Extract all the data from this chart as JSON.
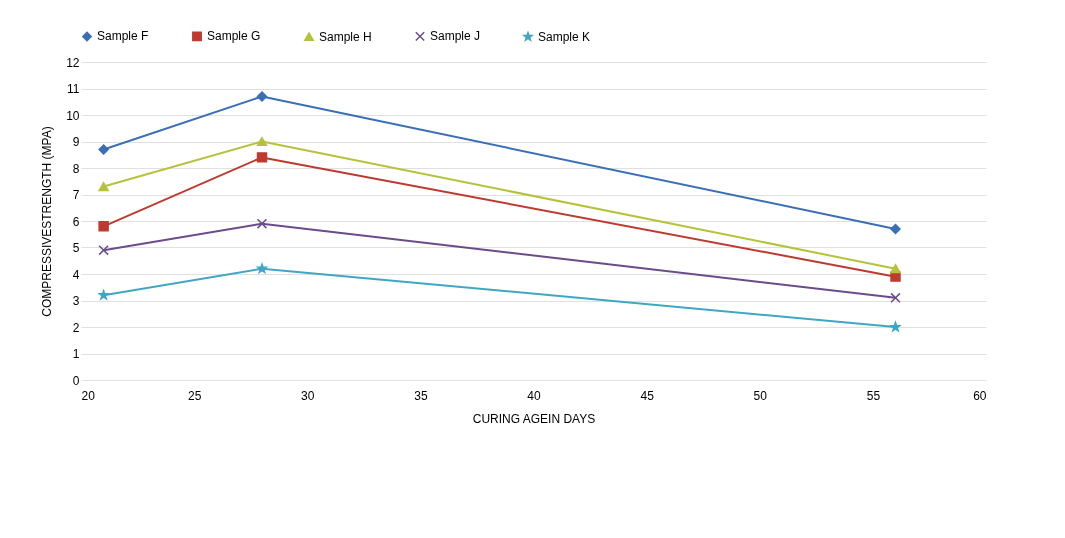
{
  "chart_data": {
    "type": "line",
    "xlabel": "CURING AGEIN DAYS",
    "ylabel": "COMPRESSIVESTRENGTH (MPA)",
    "xlim": [
      20,
      60
    ],
    "xticks": [
      20,
      25,
      30,
      35,
      40,
      45,
      50,
      55,
      60
    ],
    "ylim": [
      0,
      12
    ],
    "yticks": [
      0,
      1,
      2,
      3,
      4,
      5,
      6,
      7,
      8,
      9,
      10,
      11,
      12
    ],
    "grid": "y",
    "legend": "top",
    "x": [
      21,
      28,
      56
    ],
    "series": [
      {
        "name": "Sample F",
        "color": "#3a6fb5",
        "marker": "diamond",
        "values": [
          8.7,
          10.7,
          5.7
        ]
      },
      {
        "name": "Sample G",
        "color": "#be3a2f",
        "marker": "square",
        "values": [
          5.8,
          8.4,
          3.9
        ]
      },
      {
        "name": "Sample H",
        "color": "#b5c23a",
        "marker": "triangle",
        "values": [
          7.3,
          9.0,
          4.2
        ]
      },
      {
        "name": "Sample J",
        "color": "#6b4c8a",
        "marker": "cross",
        "values": [
          4.9,
          5.9,
          3.1
        ]
      },
      {
        "name": "Sample K",
        "color": "#3fa7c4",
        "marker": "star",
        "values": [
          3.2,
          4.2,
          2.0
        ]
      }
    ]
  }
}
